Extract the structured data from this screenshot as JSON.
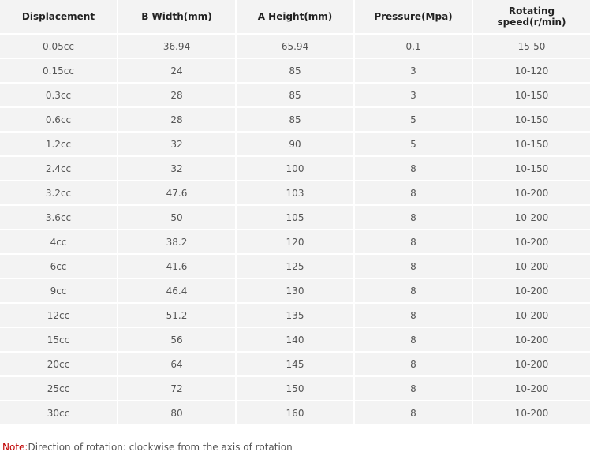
{
  "table": {
    "headers": [
      "Displacement",
      "B Width(mm)",
      "A Height(mm)",
      "Pressure(Mpa)",
      "Rotating speed(r/min)"
    ],
    "rows": [
      [
        "0.05cc",
        "36.94",
        "65.94",
        "0.1",
        "15-50"
      ],
      [
        "0.15cc",
        "24",
        "85",
        "3",
        "10-120"
      ],
      [
        "0.3cc",
        "28",
        "85",
        "3",
        "10-150"
      ],
      [
        "0.6cc",
        "28",
        "85",
        "5",
        "10-150"
      ],
      [
        "1.2cc",
        "32",
        "90",
        "5",
        "10-150"
      ],
      [
        "2.4cc",
        "32",
        "100",
        "8",
        "10-150"
      ],
      [
        "3.2cc",
        "47.6",
        "103",
        "8",
        "10-200"
      ],
      [
        "3.6cc",
        "50",
        "105",
        "8",
        "10-200"
      ],
      [
        "4cc",
        "38.2",
        "120",
        "8",
        "10-200"
      ],
      [
        "6cc",
        "41.6",
        "125",
        "8",
        "10-200"
      ],
      [
        "9cc",
        "46.4",
        "130",
        "8",
        "10-200"
      ],
      [
        "12cc",
        "51.2",
        "135",
        "8",
        "10-200"
      ],
      [
        "15cc",
        "56",
        "140",
        "8",
        "10-200"
      ],
      [
        "20cc",
        "64",
        "145",
        "8",
        "10-200"
      ],
      [
        "25cc",
        "72",
        "150",
        "8",
        "10-200"
      ],
      [
        "30cc",
        "80",
        "160",
        "8",
        "10-200"
      ]
    ]
  },
  "note": {
    "label": "Note:",
    "text": "Direction of rotation: clockwise from the axis of rotation"
  }
}
